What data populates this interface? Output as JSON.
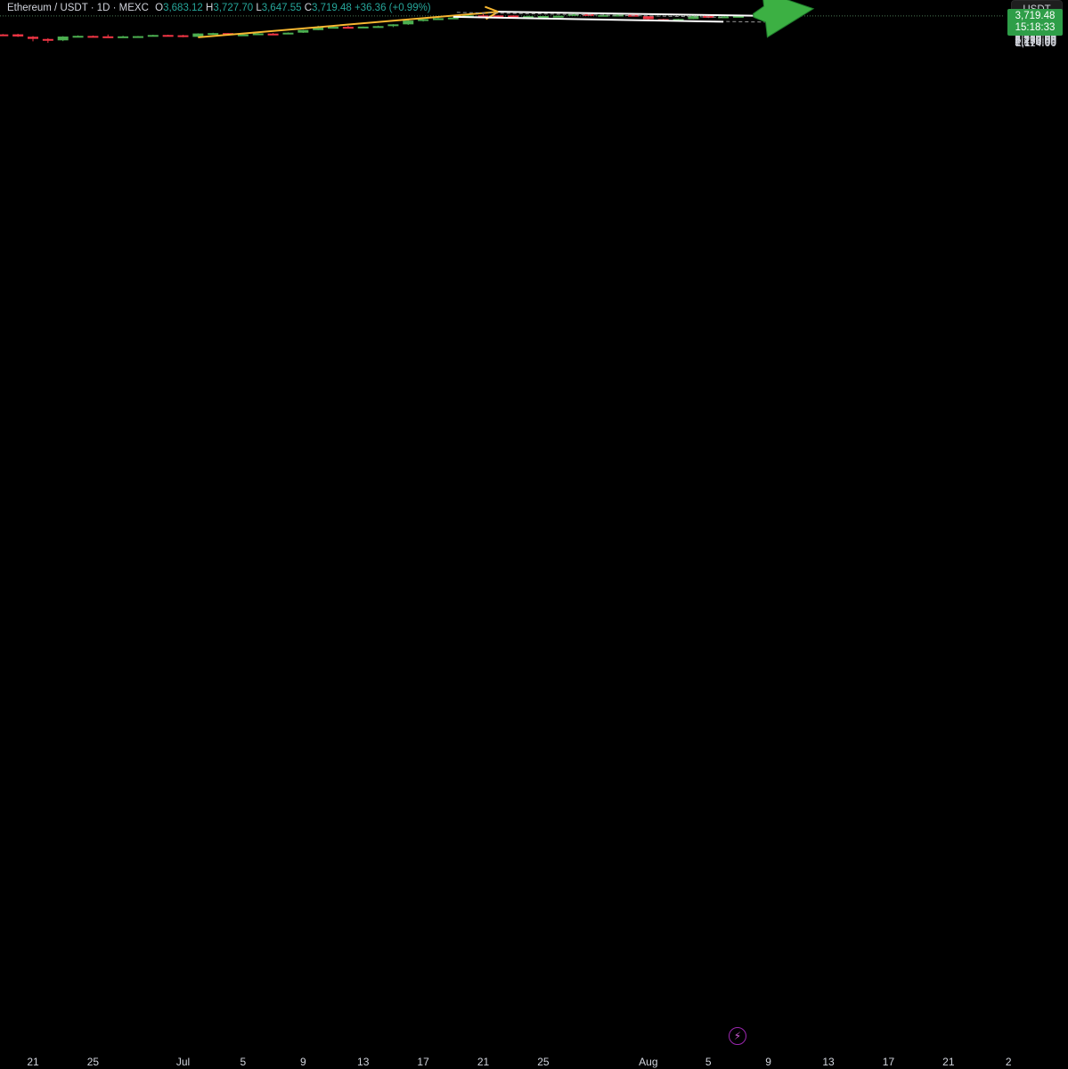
{
  "header": {
    "symbol": "Ethereum / USDT · 1D · MEXC",
    "open_label": "O",
    "open": "3,683.12",
    "high_label": "H",
    "high": "3,727.70",
    "low_label": "L",
    "low": "3,647.55",
    "close_label": "C",
    "close": "3,719.48",
    "change": "+36.36 (+0.99%)"
  },
  "currency_button": "USDT",
  "last_price": {
    "value": "3,719.48",
    "countdown": "15:18:33"
  },
  "colors": {
    "background": "#000000",
    "up": "#4caf50",
    "down": "#f23645",
    "pole_line": "#f7b731",
    "channel_line": "#ffffff",
    "breakout_arrow": "#3cb043",
    "price_tag": "#2e9e48"
  },
  "chart_data": {
    "type": "candlestick",
    "title": "Ethereum / USDT · 1D · MEXC",
    "xlabel": "",
    "ylabel": "",
    "scale": "log",
    "ylim": [
      2090,
      5320
    ],
    "y_ticks": [
      "5,200.00",
      "5,000.00",
      "4,800.00",
      "4,600.00",
      "4,400.00",
      "4,200.00",
      "4,000.00",
      "3,900.00",
      "3,800.00",
      "3,600.00",
      "3,480.00",
      "3,360.00",
      "3,240.00",
      "3,120.00",
      "3,040.00",
      "2,960.00",
      "2,885.00",
      "2,810.00",
      "2,730.00",
      "2,650.00",
      "2,570.00",
      "2,490.00",
      "2,410.00",
      "2,350.00",
      "2,290.00",
      "2,230.00",
      "2,170.00",
      "2,114.00"
    ],
    "x_ticks": [
      {
        "label": "21",
        "day": 0
      },
      {
        "label": "25",
        "day": 4
      },
      {
        "label": "Jul",
        "day": 10
      },
      {
        "label": "5",
        "day": 14
      },
      {
        "label": "9",
        "day": 18
      },
      {
        "label": "13",
        "day": 22
      },
      {
        "label": "17",
        "day": 26
      },
      {
        "label": "21",
        "day": 30
      },
      {
        "label": "25",
        "day": 34
      },
      {
        "label": "Aug",
        "day": 41
      },
      {
        "label": "5",
        "day": 45
      },
      {
        "label": "9",
        "day": 49
      },
      {
        "label": "13",
        "day": 53
      },
      {
        "label": "17",
        "day": 57
      },
      {
        "label": "21",
        "day": 61
      },
      {
        "label": "2",
        "day": 65
      }
    ],
    "candles": [
      {
        "day": -2,
        "o": 2525,
        "h": 2545,
        "l": 2505,
        "c": 2515
      },
      {
        "day": -1,
        "o": 2530,
        "h": 2560,
        "l": 2395,
        "c": 2420
      },
      {
        "day": 0,
        "o": 2405,
        "h": 2440,
        "l": 2185,
        "c": 2300
      },
      {
        "day": 1,
        "o": 2295,
        "h": 2335,
        "l": 2115,
        "c": 2230
      },
      {
        "day": 2,
        "o": 2230,
        "h": 2435,
        "l": 2195,
        "c": 2415
      },
      {
        "day": 3,
        "o": 2415,
        "h": 2475,
        "l": 2375,
        "c": 2450
      },
      {
        "day": 4,
        "o": 2445,
        "h": 2470,
        "l": 2405,
        "c": 2425
      },
      {
        "day": 5,
        "o": 2425,
        "h": 2520,
        "l": 2395,
        "c": 2420
      },
      {
        "day": 6,
        "o": 2420,
        "h": 2455,
        "l": 2400,
        "c": 2425
      },
      {
        "day": 7,
        "o": 2425,
        "h": 2445,
        "l": 2410,
        "c": 2435
      },
      {
        "day": 8,
        "o": 2435,
        "h": 2510,
        "l": 2425,
        "c": 2495
      },
      {
        "day": 9,
        "o": 2495,
        "h": 2510,
        "l": 2455,
        "c": 2485
      },
      {
        "day": 10,
        "o": 2480,
        "h": 2500,
        "l": 2385,
        "c": 2405
      },
      {
        "day": 11,
        "o": 2400,
        "h": 2585,
        "l": 2385,
        "c": 2575
      },
      {
        "day": 12,
        "o": 2575,
        "h": 2615,
        "l": 2545,
        "c": 2595
      },
      {
        "day": 13,
        "o": 2595,
        "h": 2600,
        "l": 2490,
        "c": 2515
      },
      {
        "day": 14,
        "o": 2515,
        "h": 2540,
        "l": 2500,
        "c": 2525
      },
      {
        "day": 15,
        "o": 2520,
        "h": 2595,
        "l": 2510,
        "c": 2580
      },
      {
        "day": 16,
        "o": 2570,
        "h": 2600,
        "l": 2530,
        "c": 2555
      },
      {
        "day": 17,
        "o": 2555,
        "h": 2635,
        "l": 2540,
        "c": 2620
      },
      {
        "day": 18,
        "o": 2620,
        "h": 2785,
        "l": 2605,
        "c": 2770
      },
      {
        "day": 19,
        "o": 2765,
        "h": 3030,
        "l": 2760,
        "c": 2955
      },
      {
        "day": 20,
        "o": 2955,
        "h": 2975,
        "l": 2900,
        "c": 2960
      },
      {
        "day": 21,
        "o": 2960,
        "h": 3020,
        "l": 2935,
        "c": 2955
      },
      {
        "day": 22,
        "o": 2955,
        "h": 2980,
        "l": 2940,
        "c": 2975
      },
      {
        "day": 23,
        "o": 2955,
        "h": 3035,
        "l": 2950,
        "c": 3005
      },
      {
        "day": 24,
        "o": 3005,
        "h": 3130,
        "l": 2945,
        "c": 3120
      },
      {
        "day": 25,
        "o": 3120,
        "h": 3445,
        "l": 3085,
        "c": 3375
      },
      {
        "day": 26,
        "o": 3380,
        "h": 3490,
        "l": 3310,
        "c": 3475
      },
      {
        "day": 27,
        "o": 3475,
        "h": 3615,
        "l": 3440,
        "c": 3545
      },
      {
        "day": 28,
        "o": 3545,
        "h": 3615,
        "l": 3530,
        "c": 3600
      },
      {
        "day": 29,
        "o": 3620,
        "h": 3830,
        "l": 3600,
        "c": 3765
      },
      {
        "day": 30,
        "o": 3762,
        "h": 3860,
        "l": 3700,
        "c": 3760
      },
      {
        "day": 31,
        "o": 3760,
        "h": 3770,
        "l": 3725,
        "c": 3750
      },
      {
        "day": 32,
        "o": 3755,
        "h": 3770,
        "l": 3545,
        "c": 3650
      },
      {
        "day": 33,
        "o": 3645,
        "h": 3755,
        "l": 3530,
        "c": 3700
      },
      {
        "day": 34,
        "o": 3705,
        "h": 3730,
        "l": 3660,
        "c": 3715
      },
      {
        "day": 35,
        "o": 3720,
        "h": 3745,
        "l": 3700,
        "c": 3735
      },
      {
        "day": 36,
        "o": 3740,
        "h": 3890,
        "l": 3730,
        "c": 3875
      },
      {
        "day": 37,
        "o": 3870,
        "h": 3940,
        "l": 3780,
        "c": 3800
      },
      {
        "day": 38,
        "o": 3800,
        "h": 3860,
        "l": 3720,
        "c": 3805
      },
      {
        "day": 39,
        "o": 3805,
        "h": 3850,
        "l": 3710,
        "c": 3820
      },
      {
        "day": 40,
        "o": 3810,
        "h": 3880,
        "l": 3680,
        "c": 3700
      },
      {
        "day": 41,
        "o": 3700,
        "h": 3710,
        "l": 3440,
        "c": 3480
      },
      {
        "day": 42,
        "o": 3480,
        "h": 3500,
        "l": 3350,
        "c": 3375
      },
      {
        "day": 43,
        "o": 3375,
        "h": 3500,
        "l": 3345,
        "c": 3490
      },
      {
        "day": 44,
        "o": 3490,
        "h": 3740,
        "l": 3485,
        "c": 3725
      },
      {
        "day": 45,
        "o": 3720,
        "h": 3730,
        "l": 3560,
        "c": 3615
      },
      {
        "day": 46,
        "o": 3615,
        "h": 3700,
        "l": 3575,
        "c": 3683
      },
      {
        "day": 47,
        "o": 3683.12,
        "h": 3727.7,
        "l": 3647.55,
        "c": 3719.48
      }
    ],
    "annotations": [
      {
        "kind": "pole-arrow",
        "from": {
          "day": 11,
          "price": 2375
        },
        "to": {
          "day": 31,
          "price": 4060
        }
      },
      {
        "kind": "channel-upper",
        "from": {
          "day": 31,
          "price": 4065
        },
        "to": {
          "day": 50,
          "price": 3705
        }
      },
      {
        "kind": "channel-lower",
        "from": {
          "day": 28,
          "price": 3650
        },
        "to": {
          "day": 46,
          "price": 3295
        }
      },
      {
        "kind": "breakout-arrow",
        "from": {
          "day": 48,
          "price": 3760
        },
        "to": {
          "day": 52,
          "price": 4330
        }
      }
    ],
    "last_close": 3719.48
  }
}
